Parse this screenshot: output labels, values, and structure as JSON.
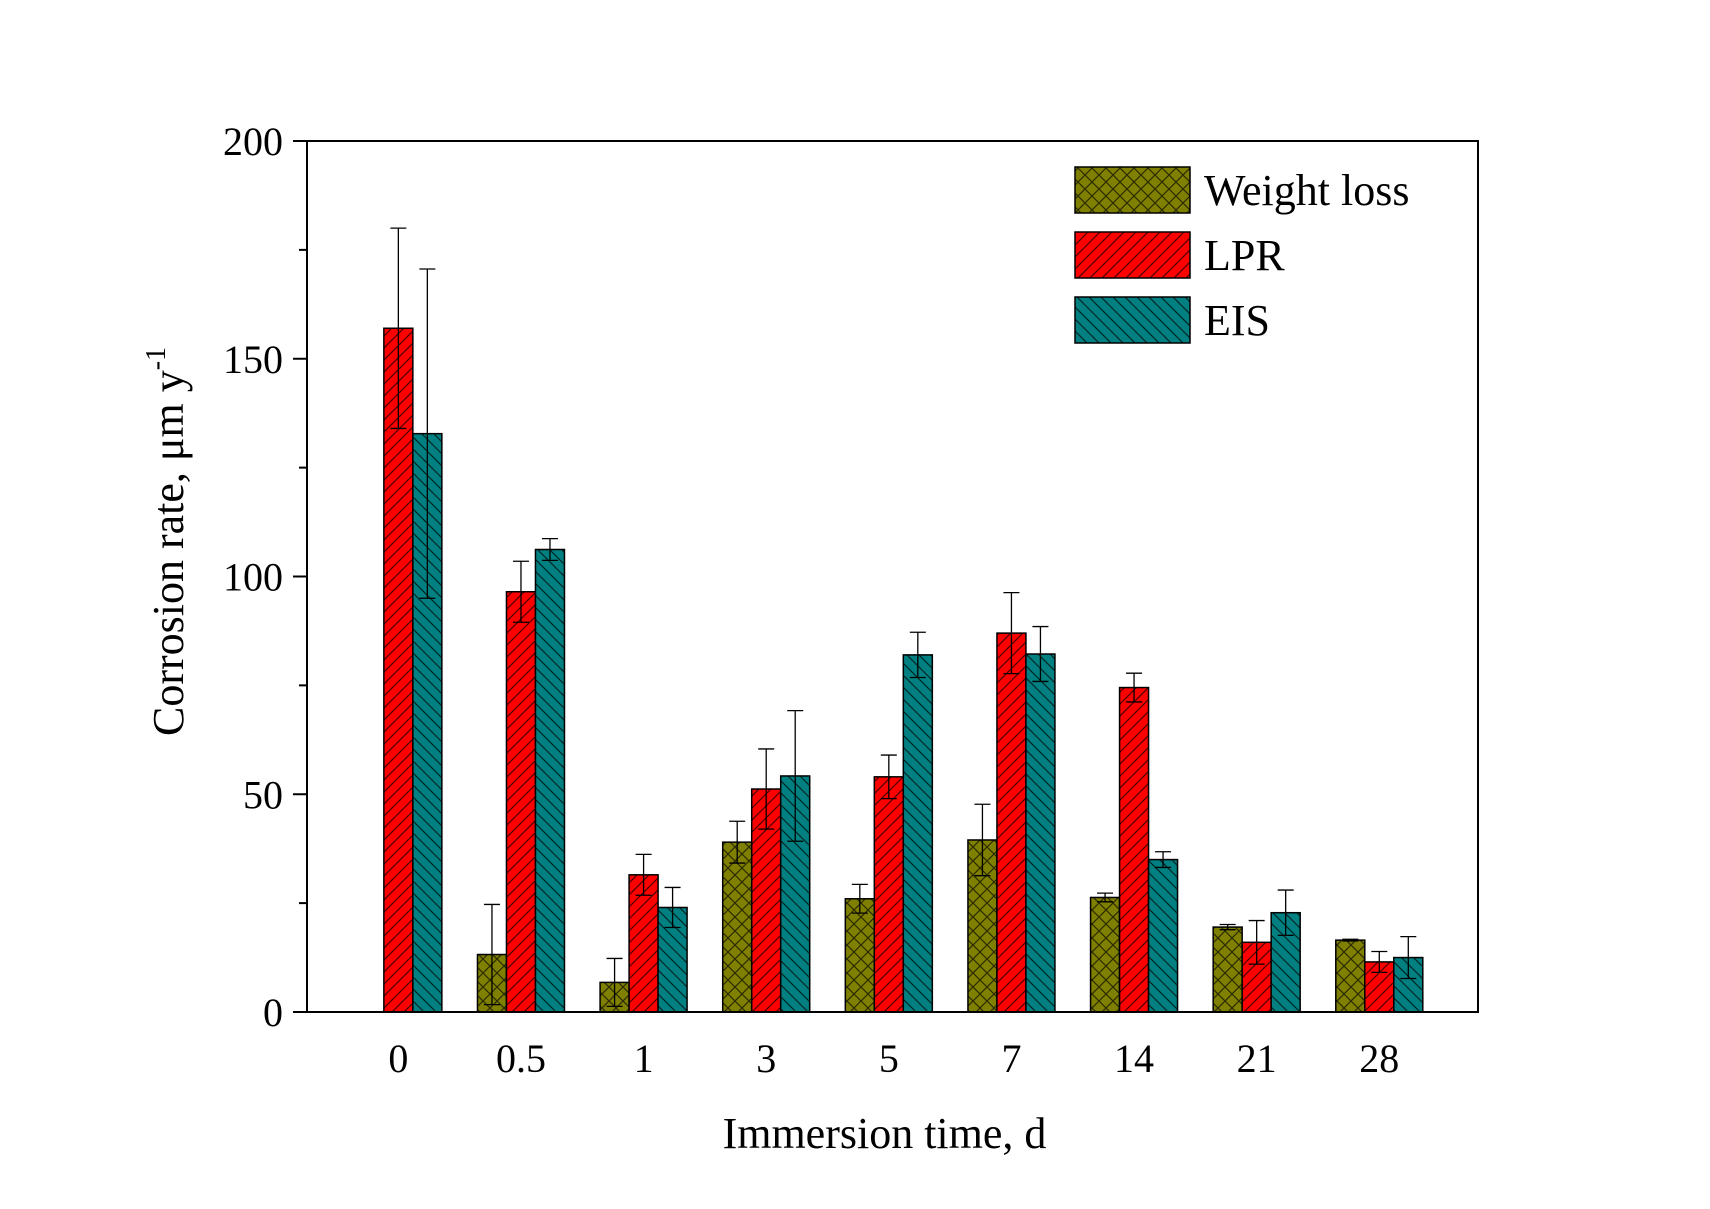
{
  "chart_data": {
    "type": "bar",
    "xlabel": "Immersion time, d",
    "ylabel": "Corrosion rate, μm y",
    "ylabel_superscript": "-1",
    "categories": [
      "0",
      "0.5",
      "1",
      "3",
      "5",
      "7",
      "14",
      "21",
      "28"
    ],
    "ylim": [
      0,
      200
    ],
    "yticks": [
      "0",
      "50",
      "100",
      "150",
      "200"
    ],
    "legend_position": "top-right",
    "series": [
      {
        "name": "Weight loss",
        "color": "#808000",
        "pattern": "crosshatch",
        "values": [
          null,
          13.2,
          6.8,
          39,
          26,
          39.5,
          26.3,
          19.5,
          16.5
        ],
        "errors": [
          null,
          11.5,
          5.5,
          4.8,
          3.3,
          8.2,
          1.0,
          0.6,
          0.2
        ]
      },
      {
        "name": "LPR",
        "color": "#ff0000",
        "pattern": "diagonal-up",
        "values": [
          157,
          96.5,
          31.5,
          51.2,
          54,
          87,
          74.5,
          16,
          11.5
        ],
        "errors": [
          23,
          7,
          4.7,
          9.2,
          5,
          9.3,
          3.3,
          5,
          2.4
        ]
      },
      {
        "name": "EIS",
        "color": "#008080",
        "pattern": "diagonal-down",
        "values": [
          132.8,
          106.2,
          24,
          54.2,
          82,
          82.2,
          35,
          22.8,
          12.5
        ],
        "errors": [
          37.8,
          2.5,
          4.6,
          15,
          5.2,
          6.3,
          1.8,
          5.2,
          4.8
        ]
      }
    ]
  }
}
